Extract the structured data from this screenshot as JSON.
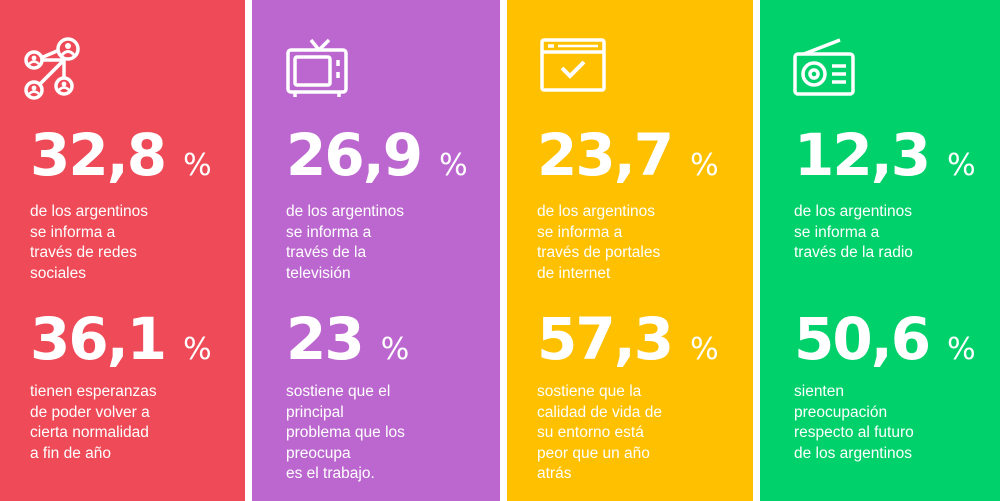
{
  "colors": {
    "red": "#EE4A57",
    "purple": "#BC67CF",
    "yellow": "#FFC000",
    "green": "#00D16B"
  },
  "panels": [
    {
      "icon": "social-network-icon",
      "stat1": {
        "value": "32,8",
        "unit": "%",
        "text": "de los argentinos\nse informa a\ntravés de redes\nsociales"
      },
      "stat2": {
        "value": "36,1",
        "unit": "%",
        "text": "tienen esperanzas\nde poder volver a\ncierta normalidad\na fin de año"
      }
    },
    {
      "icon": "television-icon",
      "stat1": {
        "value": "26,9",
        "unit": "%",
        "text": "de los argentinos\nse informa a\ntravés de la\ntelevisión"
      },
      "stat2": {
        "value": "23",
        "unit": "%",
        "text": "sostiene que el\nprincipal\nproblema que los\npreocupa\nes el trabajo."
      }
    },
    {
      "icon": "browser-check-icon",
      "stat1": {
        "value": "23,7",
        "unit": "%",
        "text": "de los argentinos\nse informa a\ntravés de portales\nde internet"
      },
      "stat2": {
        "value": "57,3",
        "unit": "%",
        "text": "sostiene que  la\ncalidad de vida de\nsu entorno está\npeor que un año\natrás"
      }
    },
    {
      "icon": "radio-icon",
      "stat1": {
        "value": "12,3",
        "unit": "%",
        "text": "de los argentinos\nse informa a\ntravés de la radio"
      },
      "stat2": {
        "value": "50,6",
        "unit": "%",
        "text": "sienten\npreocupación\nrespecto al futuro\nde los argentinos"
      }
    }
  ]
}
